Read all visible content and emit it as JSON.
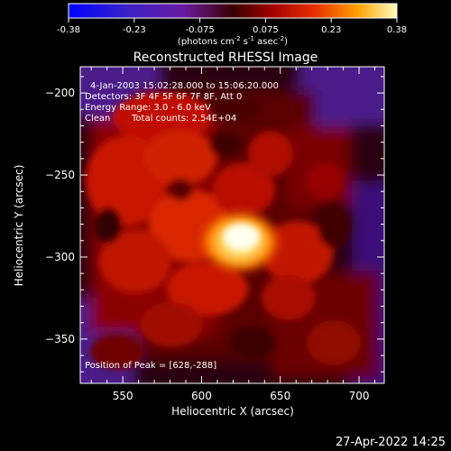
{
  "colorbar": {
    "ticks": [
      "-0.38",
      "-0.23",
      "-0.075",
      "0.075",
      "0.23",
      "0.38"
    ],
    "unit_main": "(photons cm",
    "unit_sup1": "-2",
    "unit_mid": " s",
    "unit_sup2": "-1",
    "unit_end": " asec",
    "unit_sup3": "-2",
    "unit_close": ")",
    "range": [
      -0.38,
      0.38
    ]
  },
  "chart_data": {
    "type": "heatmap",
    "title": "Reconstructed RHESSI Image",
    "xlabel": "Heliocentric X (arcsec)",
    "ylabel": "Heliocentric Y (arcsec)",
    "xlim": [
      523,
      716
    ],
    "ylim": [
      -377,
      -184
    ],
    "x_ticks": [
      550,
      600,
      650,
      700
    ],
    "y_ticks": [
      -200,
      -250,
      -300,
      -350
    ],
    "annotations": [
      "4-Jan-2003 15:02:28.000 to 15:06:20.000",
      "Detectors: 3F 4F 5F 6F 7F 8F, Att 0",
      "Energy Range: 3.0 - 6.0 keV",
      "Clean",
      "Total counts: 2.54E+04"
    ],
    "peak_label": "Position of Peak = [628,-288]",
    "peak": [
      628,
      -288
    ],
    "grid": false
  },
  "footer": {
    "timestamp": "27-Apr-2022 14:25"
  }
}
